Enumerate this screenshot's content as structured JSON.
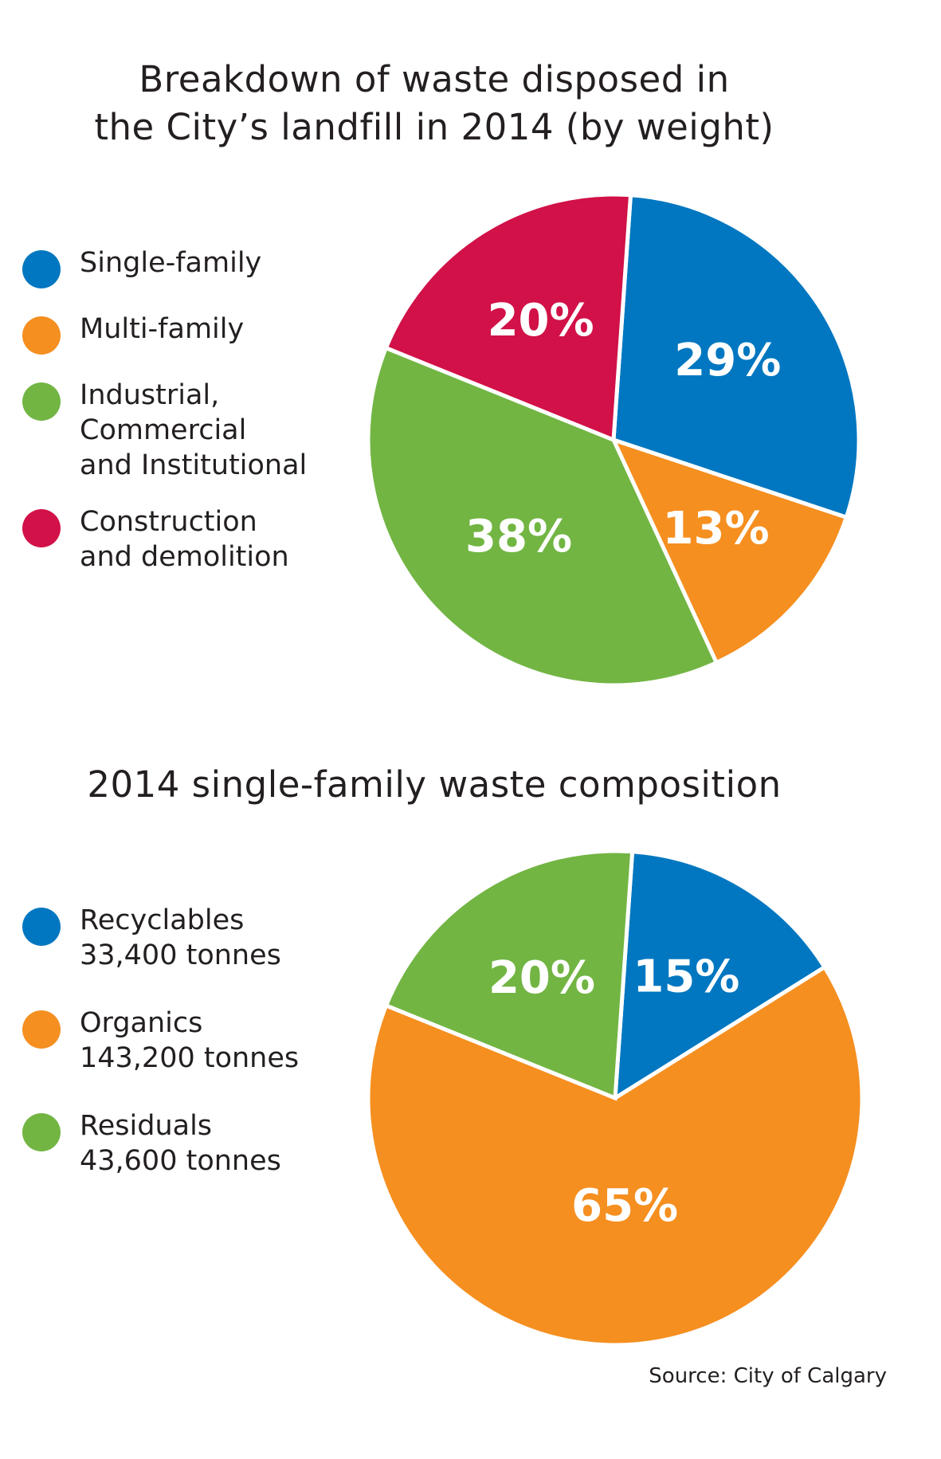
{
  "colors": {
    "blue": "#0077c0",
    "orange": "#f58f20",
    "green": "#72b543",
    "crimson": "#d11148"
  },
  "chart_data": [
    {
      "type": "pie",
      "title_lines": [
        "Breakdown of waste disposed in",
        "the City’s landfill in 2014 (by weight)"
      ],
      "slices": [
        {
          "name_lines": [
            "Single-family"
          ],
          "value": 29,
          "label": "29%",
          "color": "#0077c0"
        },
        {
          "name_lines": [
            "Multi-family"
          ],
          "value": 13,
          "label": "13%",
          "color": "#f58f20"
        },
        {
          "name_lines": [
            "Industrial,",
            "Commercial",
            "and Institutional"
          ],
          "value": 38,
          "label": "38%",
          "color": "#72b543"
        },
        {
          "name_lines": [
            "Construction",
            "and demolition"
          ],
          "value": 20,
          "label": "20%",
          "color": "#d11148"
        }
      ],
      "start_angle_deg": 4,
      "legend_position": "left"
    },
    {
      "type": "pie",
      "title_lines": [
        "2014 single-family waste composition"
      ],
      "slices": [
        {
          "name_lines": [
            "Recyclables",
            "33,400 tonnes"
          ],
          "value": 15,
          "label": "15%",
          "color": "#0077c0"
        },
        {
          "name_lines": [
            "Organics",
            "143,200 tonnes"
          ],
          "value": 65,
          "label": "65%",
          "color": "#f58f20"
        },
        {
          "name_lines": [
            "Residuals",
            "43,600 tonnes"
          ],
          "value": 20,
          "label": "20%",
          "color": "#72b543"
        }
      ],
      "start_angle_deg": 4,
      "legend_position": "left"
    }
  ],
  "source": "Source: City of Calgary"
}
